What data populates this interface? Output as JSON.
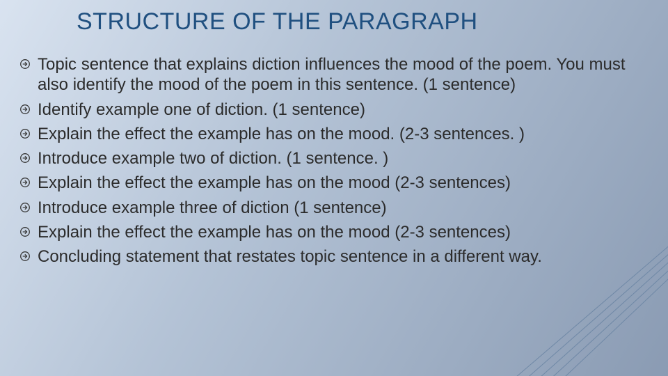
{
  "title": "STRUCTURE OF THE PARAGRAPH",
  "title_color": "#205080",
  "title_fontsize": 34,
  "body_color": "#2b2b2b",
  "body_fontsize": 24,
  "background_gradient": [
    "#d9e3f0",
    "#b4c3d6",
    "#8a9bb3"
  ],
  "bullet_icon": {
    "name": "circled-arrow-right",
    "stroke": "#3a3a3a",
    "size": 16
  },
  "bullets": [
    "Topic sentence that explains diction influences the mood of the poem. You must also identify the mood of the poem in this sentence. (1 sentence)",
    "Identify example one of diction. (1 sentence)",
    "Explain the effect the example has on the mood.  (2-3 sentences. )",
    "Introduce example two of diction. (1 sentence. )",
    "Explain the effect the example has on the mood (2-3 sentences)",
    "Introduce example three of diction (1 sentence)",
    "Explain the effect the example has on the mood (2-3 sentences)",
    "Concluding statement that restates topic sentence in a different way."
  ],
  "deco_lines": {
    "color": "#6f88a6",
    "count": 5,
    "stroke_width": 1
  }
}
